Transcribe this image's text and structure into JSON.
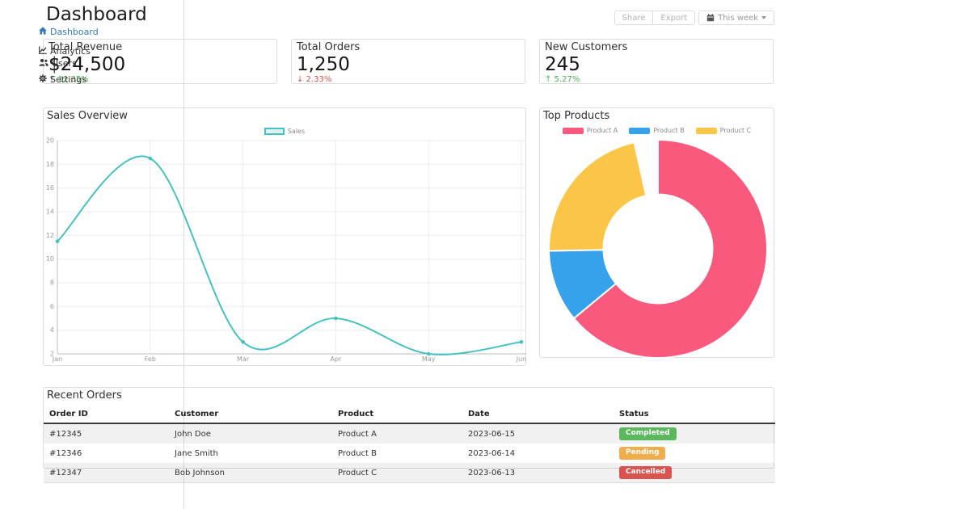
{
  "header": {
    "title": "Dashboard"
  },
  "sidebar": {
    "items": [
      {
        "label": "Dashboard",
        "icon": "home-icon",
        "active": true
      },
      {
        "label": "Analytics",
        "icon": "chart-line-icon",
        "active": false
      },
      {
        "label": "Users",
        "icon": "users-icon",
        "active": false
      },
      {
        "label": "Settings",
        "icon": "gear-icon",
        "active": false
      }
    ]
  },
  "toolbar": {
    "share_label": "Share",
    "export_label": "Export",
    "period_label": "This week",
    "period_icon": "calendar-icon"
  },
  "stats": [
    {
      "label": "Total Revenue",
      "value": "$24,500",
      "arrow": "↑",
      "change": "12.35%",
      "change_color": "#4caf50"
    },
    {
      "label": "Total Orders",
      "value": "1,250",
      "arrow": "↓",
      "change": "2.33%",
      "change_color": "#d9534f"
    },
    {
      "label": "New Customers",
      "value": "245",
      "arrow": "↑",
      "change": "5.27%",
      "change_color": "#4caf50"
    }
  ],
  "chart_data": [
    {
      "type": "line",
      "title": "Sales Overview",
      "x": [
        "Jan",
        "Feb",
        "Mar",
        "Apr",
        "May",
        "Jun"
      ],
      "series": [
        {
          "name": "Sales",
          "values": [
            11.5,
            18.5,
            3,
            5,
            2,
            3
          ],
          "color": "#45c1c1",
          "fill_color": "#def2f2"
        }
      ],
      "ylim": [
        2,
        20
      ],
      "y_ticks": [
        20,
        18,
        16,
        14,
        12,
        10,
        8,
        6,
        4,
        2
      ],
      "grid": true,
      "legend_position": "top"
    },
    {
      "type": "doughnut",
      "title": "Top Products",
      "labels": [
        "Product A",
        "Product B",
        "Product C"
      ],
      "values": [
        64.0,
        10.7,
        21.8
      ],
      "unfilled_pct": 3.5,
      "colors": [
        "#f8597d",
        "#36a2eb",
        "#fbc648"
      ],
      "cutout_ratio": 0.5,
      "legend_position": "top"
    }
  ],
  "orders": {
    "title": "Recent Orders",
    "columns": [
      "Order ID",
      "Customer",
      "Product",
      "Date",
      "Status"
    ],
    "rows": [
      {
        "order_id": "#12345",
        "customer": "John Doe",
        "product": "Product A",
        "date": "2023-06-15",
        "status": "Completed",
        "status_color": "#5cb85c"
      },
      {
        "order_id": "#12346",
        "customer": "Jane Smith",
        "product": "Product B",
        "date": "2023-06-14",
        "status": "Pending",
        "status_color": "#f0ad4e"
      },
      {
        "order_id": "#12347",
        "customer": "Bob Johnson",
        "product": "Product C",
        "date": "2023-06-13",
        "status": "Cancelled",
        "status_color": "#d9534f"
      }
    ]
  }
}
